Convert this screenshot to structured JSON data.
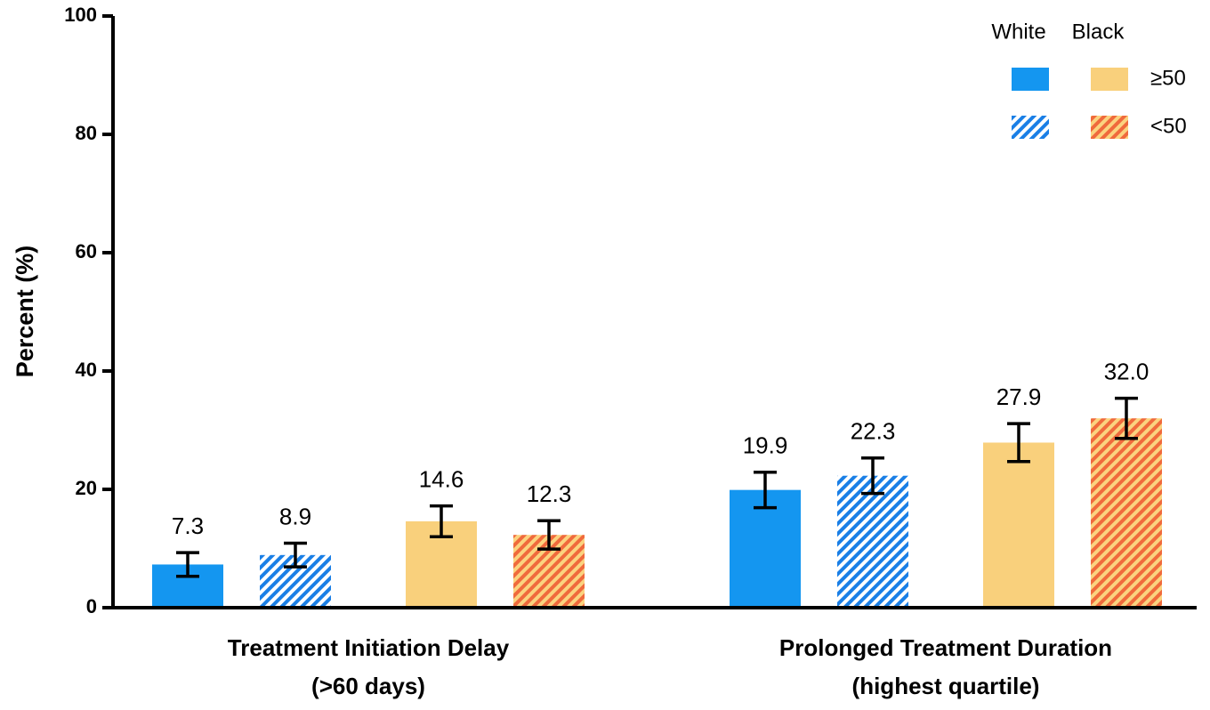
{
  "chart_data": {
    "type": "bar",
    "y_label": "Percent (%)",
    "categories": [
      [
        "Treatment Initiation Delay",
        "(>60 days)"
      ],
      [
        "Prolonged Treatment Duration",
        "(highest quartile)"
      ]
    ],
    "legend": {
      "columns": [
        "White",
        "Black"
      ],
      "rows": [
        "≥50",
        "<50"
      ]
    },
    "series": [
      {
        "color": "#1496f0",
        "hatched": false,
        "values": [
          7.3,
          19.9
        ],
        "value_labels": [
          "7.3",
          "19.9"
        ],
        "errors": [
          2.0,
          3.0
        ]
      },
      {
        "color": "#1a7fe6",
        "hatched": true,
        "background": "#ffffff",
        "values": [
          8.9,
          22.3
        ],
        "value_labels": [
          "8.9",
          "22.3"
        ],
        "errors": [
          2.0,
          3.0
        ]
      },
      {
        "color": "#f9d07c",
        "hatched": false,
        "values": [
          14.6,
          27.9
        ],
        "value_labels": [
          "14.6",
          "27.9"
        ],
        "errors": [
          2.6,
          3.2
        ]
      },
      {
        "color": "#f06a3c",
        "hatched": true,
        "background": "#fbd37f",
        "values": [
          12.3,
          32.0
        ],
        "value_labels": [
          "12.3",
          "32.0"
        ],
        "errors": [
          2.4,
          3.4
        ]
      }
    ],
    "ylim": [
      0,
      100
    ],
    "yticks": [
      0,
      20,
      40,
      60,
      80,
      100
    ]
  }
}
